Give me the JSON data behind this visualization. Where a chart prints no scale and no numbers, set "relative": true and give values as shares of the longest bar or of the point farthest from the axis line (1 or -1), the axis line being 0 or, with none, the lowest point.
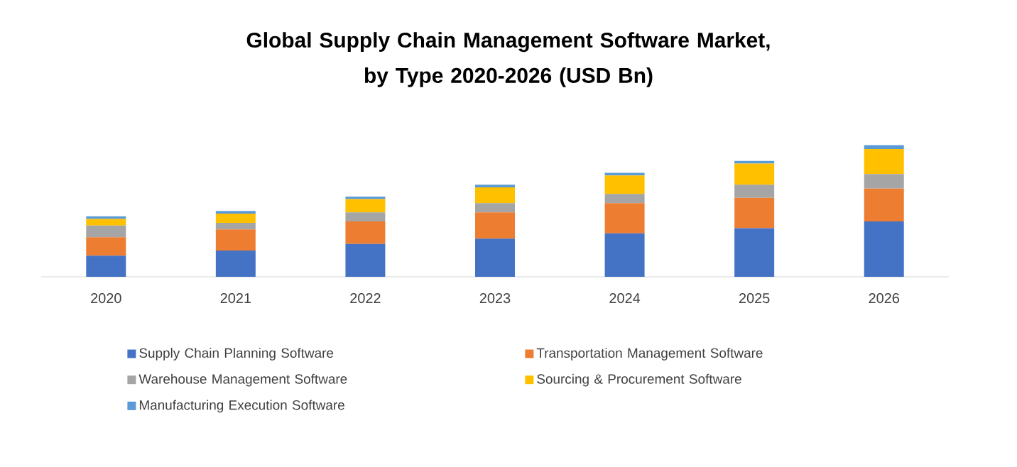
{
  "chart_data": {
    "type": "bar",
    "title": "Global Supply Chain Management Software Market,\nby Type 2020-2026 (USD Bn)",
    "stacked": true,
    "relative": true,
    "legend": "bottom",
    "categories": [
      "2020",
      "2021",
      "2022",
      "2023",
      "2024",
      "2025",
      "2026"
    ],
    "series": [
      {
        "name": "Supply Chain Planning Software",
        "color": "#4472c4",
        "values": [
          0.16,
          0.2,
          0.25,
          0.29,
          0.33,
          0.37,
          0.42
        ]
      },
      {
        "name": "Transportation Management  Software",
        "color": "#ed7d31",
        "values": [
          0.14,
          0.16,
          0.17,
          0.2,
          0.23,
          0.23,
          0.25
        ]
      },
      {
        "name": "Warehouse Management Software",
        "color": "#a5a5a5",
        "values": [
          0.09,
          0.05,
          0.07,
          0.07,
          0.07,
          0.1,
          0.11
        ]
      },
      {
        "name": "Sourcing & Procurement Software",
        "color": "#ffc000",
        "values": [
          0.05,
          0.07,
          0.1,
          0.12,
          0.14,
          0.16,
          0.19
        ]
      },
      {
        "name": "Manufacturing Execution Software",
        "color": "#5b9bd5",
        "values": [
          0.02,
          0.02,
          0.02,
          0.02,
          0.02,
          0.02,
          0.03
        ]
      }
    ]
  }
}
